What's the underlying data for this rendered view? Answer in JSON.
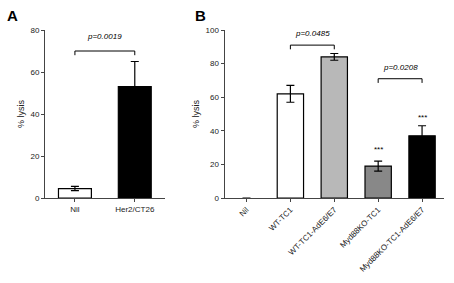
{
  "chart_data": [
    {
      "type": "bar",
      "title": "A",
      "categories": [
        "Nil",
        "Her2/CT26"
      ],
      "values": [
        4.5,
        53.0
      ],
      "errors": [
        1.0,
        12.0
      ],
      "colors": [
        "white",
        "black"
      ],
      "ylabel": "% lysis",
      "ylim": [
        0,
        80
      ],
      "yticks": [
        0,
        20,
        40,
        60,
        80
      ],
      "grid": false,
      "annotations": [
        {
          "text": "p=0.0019",
          "from": "Nil",
          "to": "Her2/CT26",
          "y": 70,
          "text_y": 74
        }
      ]
    },
    {
      "type": "bar",
      "title": "B",
      "categories": [
        "Nil",
        "WT-TC1",
        "WT-TC1-AdE6/E7",
        "Myd88KO-TC1",
        "Myd88KO-TC1-AdE6/E7"
      ],
      "values": [
        0,
        62.0,
        84.0,
        19.0,
        37.0
      ],
      "errors": [
        0,
        5.0,
        2.0,
        3.0,
        6.0
      ],
      "colors": [
        "white",
        "white",
        "#b8b8b8",
        "#888888",
        "black"
      ],
      "ylabel": "% lysis",
      "ylim": [
        0,
        100
      ],
      "yticks": [
        0,
        20,
        40,
        60,
        80,
        100
      ],
      "grid": false,
      "annotations": [
        {
          "text": "p=0.0485",
          "from": "WT-TC1",
          "to": "WT-TC1-AdE6/E7",
          "y": 91,
          "text_y": 94
        },
        {
          "text": "p=0.0208",
          "from": "Myd88KO-TC1",
          "to": "Myd88KO-TC1-AdE6/E7",
          "y": 71,
          "text_y": 74
        },
        {
          "text": "***",
          "at": "Myd88KO-TC1",
          "y": 25
        },
        {
          "text": "***",
          "at": "Myd88KO-TC1-AdE6/E7",
          "y": 44
        }
      ]
    }
  ]
}
